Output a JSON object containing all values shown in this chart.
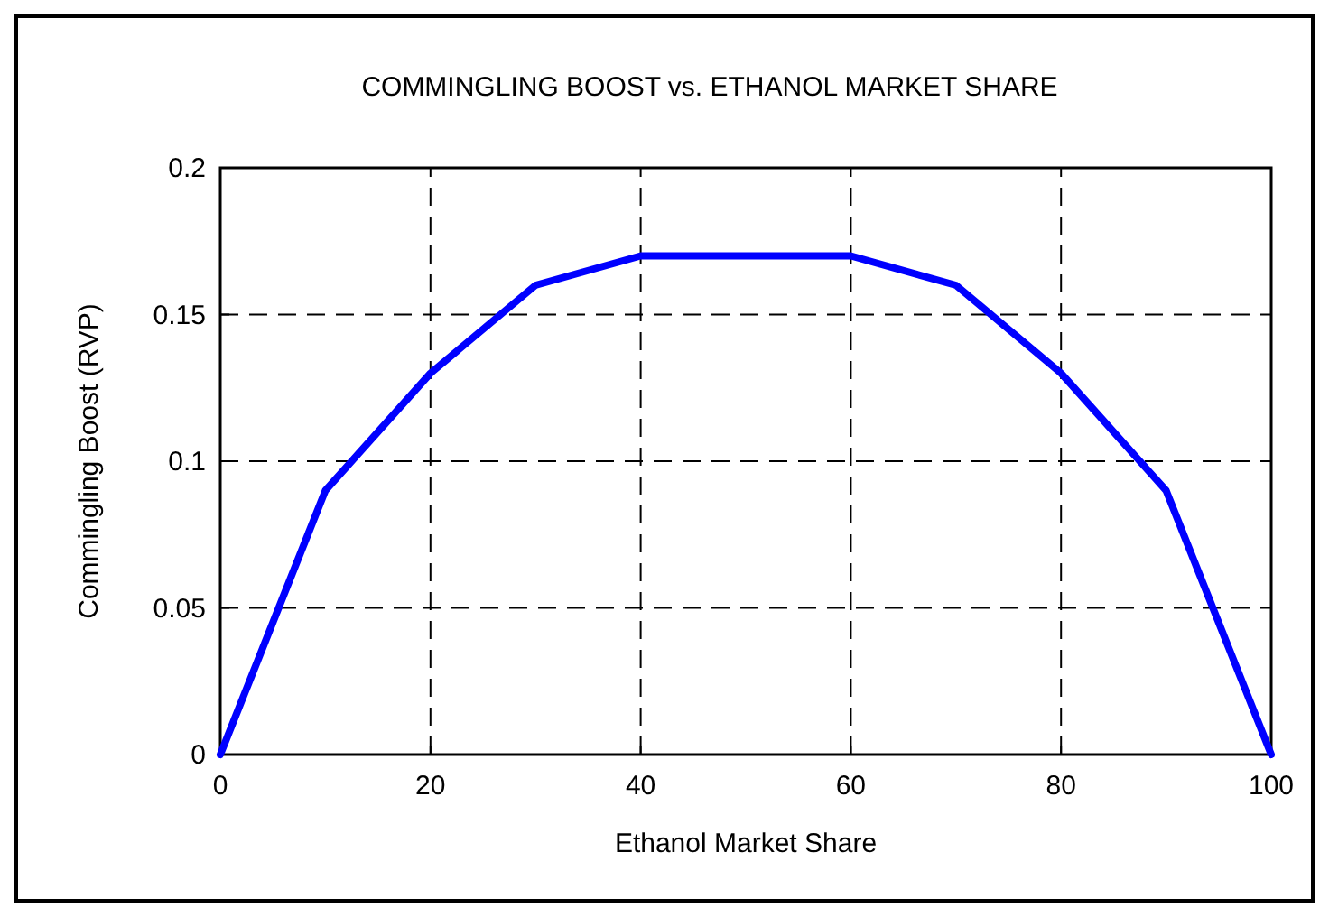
{
  "chart_data": {
    "type": "line",
    "title": "COMMINGLING BOOST vs. ETHANOL MARKET SHARE",
    "xlabel": "Ethanol Market Share",
    "ylabel": "Commingling Boost (RVP)",
    "x": [
      0,
      10,
      20,
      30,
      40,
      50,
      60,
      70,
      80,
      90,
      100
    ],
    "series": [
      {
        "color": "#0000ff",
        "values": [
          0,
          0.09,
          0.13,
          0.16,
          0.17,
          0.17,
          0.17,
          0.16,
          0.13,
          0.09,
          0
        ]
      }
    ],
    "xlim": [
      0,
      100
    ],
    "xticks": [
      0,
      20,
      40,
      60,
      80,
      100
    ],
    "ylim": [
      0,
      0.2
    ],
    "yticks": [
      0,
      0.05,
      0.1,
      0.15,
      0.2
    ],
    "grid": true,
    "marker": "none",
    "line_style": "solid"
  }
}
